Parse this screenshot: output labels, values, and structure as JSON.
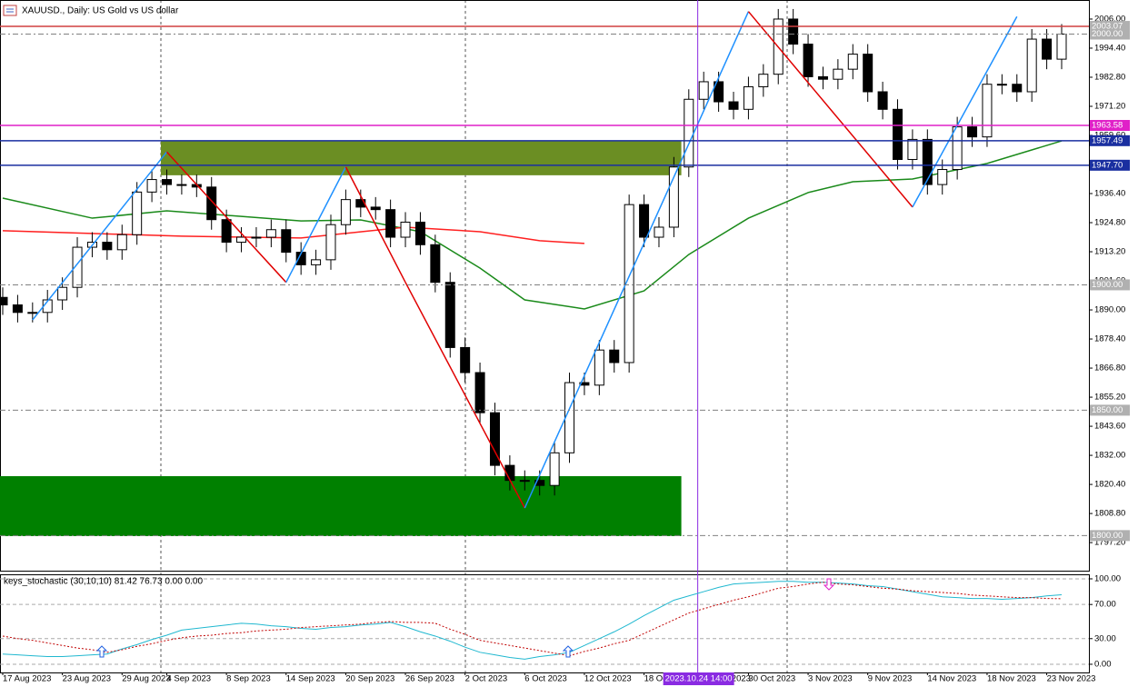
{
  "chart_data": [
    {
      "type": "candlestick",
      "title": "XAUUSD., Daily:  US Gold vs US dollar",
      "categories": [
        "17 Aug 2023",
        null,
        null,
        null,
        "23 Aug 2023",
        null,
        null,
        null,
        "29 Aug 2023",
        null,
        null,
        "4 Sep 2023",
        null,
        null,
        null,
        "8 Sep 2023",
        null,
        null,
        null,
        "14 Sep 2023",
        null,
        null,
        null,
        "20 Sep 2023",
        null,
        null,
        null,
        "26 Sep 2023",
        null,
        null,
        null,
        "2 Oct 2023",
        null,
        null,
        null,
        "6 Oct 2023",
        null,
        null,
        null,
        "12 Oct 2023",
        null,
        null,
        null,
        "18 Oct 2023",
        null,
        null,
        null,
        "24 Oct 2023",
        null,
        null,
        "30 Oct 2023",
        null,
        null,
        null,
        "3 Nov 2023",
        null,
        null,
        null,
        "9 Nov 2023",
        null,
        null,
        null,
        "14 Nov 2023",
        null,
        null,
        null,
        "18 Nov 2023",
        null,
        null,
        null,
        "23 Nov 2023",
        null
      ],
      "open": [
        1895,
        1892,
        1889,
        1889,
        1894,
        1899,
        1915,
        1917,
        1914,
        1920,
        1937,
        1942,
        1940,
        1940,
        1939,
        1926,
        1917,
        1919,
        1919,
        1922,
        1913,
        1908,
        1910,
        1924,
        1934,
        1931,
        1930,
        1919,
        1925,
        1916,
        1901,
        1875,
        1865,
        1849,
        1828,
        1822,
        1822,
        1820,
        1833,
        1861,
        1860,
        1874,
        1869,
        1932,
        1919,
        1923,
        1947,
        1974,
        1981,
        1973,
        1970,
        1979,
        1984,
        2006,
        1996,
        1983,
        1982,
        1986,
        1992,
        1977,
        1970,
        1950,
        1958,
        1940,
        1946,
        1963,
        1959,
        1980,
        1980,
        1977,
        1998,
        1990
      ],
      "high": [
        1899,
        1896,
        1893,
        1898,
        1903,
        1919,
        1921,
        1921,
        1924,
        1941,
        1946,
        1946,
        1944,
        1944,
        1943,
        1930,
        1923,
        1923,
        1926,
        1926,
        1917,
        1914,
        1928,
        1938,
        1938,
        1935,
        1934,
        1929,
        1929,
        1920,
        1905,
        1879,
        1869,
        1853,
        1832,
        1826,
        1826,
        1837,
        1865,
        1865,
        1878,
        1878,
        1936,
        1936,
        1927,
        1951,
        1978,
        1985,
        1985,
        1977,
        1983,
        1988,
        2010,
        2010,
        2000,
        1987,
        1990,
        1996,
        1996,
        1981,
        1974,
        1962,
        1962,
        1950,
        1967,
        1967,
        1984,
        1984,
        1984,
        2002,
        2002,
        2004
      ],
      "low": [
        1888,
        1885,
        1885,
        1885,
        1890,
        1895,
        1911,
        1910,
        1910,
        1916,
        1933,
        1936,
        1936,
        1935,
        1922,
        1913,
        1913,
        1915,
        1915,
        1909,
        1904,
        1904,
        1906,
        1920,
        1927,
        1926,
        1915,
        1915,
        1912,
        1897,
        1871,
        1861,
        1845,
        1824,
        1818,
        1818,
        1816,
        1816,
        1829,
        1856,
        1856,
        1865,
        1865,
        1915,
        1915,
        1919,
        1943,
        1970,
        1969,
        1966,
        1966,
        1975,
        1980,
        1992,
        1979,
        1978,
        1978,
        1982,
        1973,
        1966,
        1946,
        1946,
        1936,
        1936,
        1942,
        1955,
        1955,
        1976,
        1973,
        1973,
        1986,
        1986
      ],
      "close": [
        1892,
        1889,
        1889,
        1894,
        1899,
        1915,
        1917,
        1914,
        1920,
        1937,
        1942,
        1940,
        1940,
        1939,
        1926,
        1917,
        1919,
        1919,
        1922,
        1913,
        1908,
        1910,
        1924,
        1934,
        1931,
        1930,
        1919,
        1925,
        1916,
        1901,
        1875,
        1865,
        1849,
        1828,
        1822,
        1822,
        1820,
        1833,
        1861,
        1860,
        1874,
        1869,
        1932,
        1919,
        1923,
        1947,
        1974,
        1981,
        1973,
        1970,
        1979,
        1984,
        2006,
        1996,
        1983,
        1982,
        1986,
        1992,
        1977,
        1970,
        1950,
        1958,
        1940,
        1946,
        1963,
        1959,
        1980,
        1980,
        1977,
        1998,
        1990,
        2000
      ],
      "ylim": [
        1786,
        2013.6
      ],
      "yticks": [
        {
          "value": 2006,
          "label": "2006.00"
        },
        {
          "value": 1994.4,
          "label": "1994.40"
        },
        {
          "value": 1982.8,
          "label": "1982.80"
        },
        {
          "value": 1971.2,
          "label": "1971.20"
        },
        {
          "value": 1959.6,
          "label": "1959.60"
        },
        {
          "value": 1948,
          "label": "1948.00"
        },
        {
          "value": 1936.4,
          "label": "1936.40"
        },
        {
          "value": 1924.8,
          "label": "1924.80"
        },
        {
          "value": 1913.2,
          "label": "1913.20"
        },
        {
          "value": 1901.6,
          "label": "1901.60"
        },
        {
          "value": 1890,
          "label": "1890.00"
        },
        {
          "value": 1878.4,
          "label": "1878.40"
        },
        {
          "value": 1866.8,
          "label": "1866.80"
        },
        {
          "value": 1855.2,
          "label": "1855.20"
        },
        {
          "value": 1843.6,
          "label": "1843.60"
        },
        {
          "value": 1832,
          "label": "1832.00"
        },
        {
          "value": 1820.4,
          "label": "1820.40"
        },
        {
          "value": 1808.8,
          "label": "1808.80"
        },
        {
          "value": 1797.2,
          "label": "1797.20"
        }
      ],
      "levels": [
        {
          "value": 2003.07,
          "label": "2003.07",
          "color": "#b0b0b0",
          "line": "#d04040",
          "dash": false
        },
        {
          "value": 2000,
          "label": "2000.00",
          "color": "#b0b0b0",
          "line": "#808080",
          "dash": true
        },
        {
          "value": 1963.58,
          "label": "1963.58",
          "color": "#e020c8",
          "line": "#e020c8",
          "dash": false
        },
        {
          "value": 1957.49,
          "label": "1957.49",
          "color": "#1a2fa0",
          "line": "#1a2fa0",
          "dash": false
        },
        {
          "value": 1947.7,
          "label": "1947.70",
          "color": "#1a2fa0",
          "line": "#1a2fa0",
          "dash": false
        },
        {
          "value": 1900,
          "label": "1900.00",
          "color": "#b0b0b0",
          "line": "#808080",
          "dash": true
        },
        {
          "value": 1850,
          "label": "1850.00",
          "color": "#b0b0b0",
          "line": "#808080",
          "dash": true
        },
        {
          "value": 1800,
          "label": "1800.00",
          "color": "#b0b0b0",
          "line": "#808080",
          "dash": true
        }
      ],
      "zones": [
        {
          "from": 1943.7,
          "to": 1957.4,
          "x": [
            10.6,
            45.5
          ],
          "color": "#6b8e23"
        },
        {
          "from": 1799.8,
          "to": 1823.7,
          "x": [
            -0.2,
            45.5
          ],
          "color": "#008000"
        }
      ],
      "lines": [
        {
          "color": "#1a8a1a",
          "x": [
            0,
            6,
            11,
            16,
            20,
            24,
            28,
            32,
            35,
            39,
            43,
            46,
            50,
            54,
            57,
            61,
            66,
            71
          ],
          "values": [
            1934.6,
            1926.6,
            1929.5,
            1927.3,
            1925.5,
            1925.9,
            1921.2,
            1906.7,
            1894,
            1890.4,
            1897.6,
            1912.1,
            1926.6,
            1936.8,
            1941.1,
            1942.2,
            1948.4,
            1957.4
          ]
        },
        {
          "color": "#ff2020",
          "x": [
            0,
            12,
            20,
            27,
            32,
            36,
            39
          ],
          "values": [
            1921.6,
            1919.4,
            1918.7,
            1923,
            1921.2,
            1917.6,
            1916.5
          ]
        }
      ],
      "zigzag": {
        "x": [
          2,
          11,
          19,
          23,
          27,
          35,
          50,
          61,
          68
        ],
        "values": [
          1886,
          1953,
          1901,
          1947,
          1901,
          1811,
          2009,
          1931,
          2007
        ],
        "colors": [
          "#1e90ff",
          "#e00000"
        ]
      },
      "cursor": {
        "x": 46.6,
        "label": "2023.10.24 14:00",
        "color": "#8a2be2"
      }
    },
    {
      "type": "line",
      "title": "keys_stochastic (30,10,10) 81.42 76.73 0.00 0.00",
      "series": [
        {
          "color": "#20b8d0",
          "dash": false,
          "values": [
            12,
            11,
            10,
            9,
            9,
            10,
            11,
            12,
            18,
            23,
            29,
            34,
            40,
            42,
            44,
            46,
            48,
            47,
            45,
            44,
            42,
            41,
            43,
            44,
            46,
            47,
            49,
            44,
            38,
            33,
            27,
            20,
            14,
            11,
            8,
            6,
            9,
            11,
            14,
            22,
            30,
            38,
            47,
            57,
            66,
            75,
            80,
            85,
            90,
            94,
            95,
            96,
            97,
            97,
            96,
            96,
            95,
            94,
            92,
            91,
            88,
            85,
            82,
            79,
            78,
            77,
            77,
            76,
            77,
            78,
            80,
            81.42
          ]
        },
        {
          "color": "#c00000",
          "dash": true,
          "values": [
            33,
            30,
            28,
            25,
            22,
            19,
            17,
            14,
            17,
            21,
            24,
            28,
            31,
            33,
            34,
            36,
            37,
            39,
            40,
            41,
            43,
            44,
            45,
            46,
            47,
            49,
            50,
            49,
            49,
            48,
            41,
            35,
            28,
            25,
            22,
            19,
            16,
            13,
            10,
            15,
            19,
            24,
            28,
            36,
            44,
            52,
            60,
            65,
            70,
            75,
            79,
            84,
            89,
            91,
            94,
            96,
            94,
            93,
            91,
            89,
            88,
            86,
            85,
            84,
            83,
            81,
            80,
            79,
            78,
            78,
            77,
            76.73
          ]
        }
      ],
      "ylim": [
        -9.6,
        105.3
      ],
      "yticks": [
        {
          "value": 100,
          "label": "100.00"
        },
        {
          "value": 70,
          "label": "70.00"
        },
        {
          "value": 30,
          "label": "30.00"
        },
        {
          "value": 0,
          "label": "0.00"
        }
      ]
    }
  ]
}
